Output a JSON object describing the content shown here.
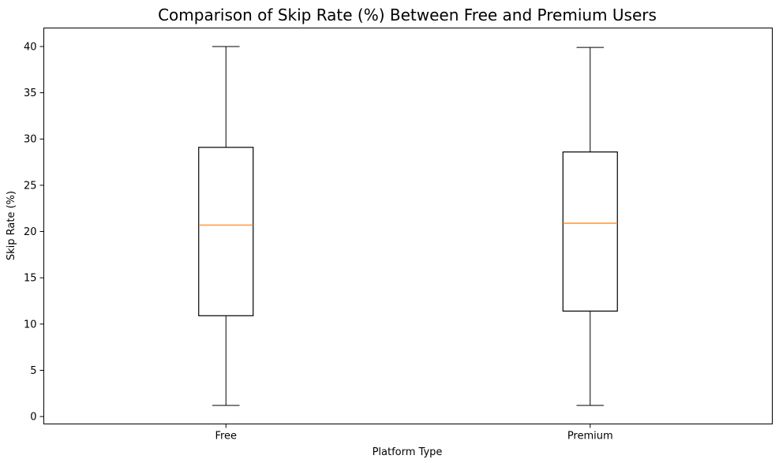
{
  "chart_data": {
    "type": "box",
    "title": "Comparison of Skip Rate (%) Between Free and Premium Users",
    "xlabel": "Platform Type",
    "ylabel": "Skip Rate (%)",
    "ylim": [
      -0.8,
      42
    ],
    "yticks": [
      0,
      5,
      10,
      15,
      20,
      25,
      30,
      35,
      40
    ],
    "grid": false,
    "categories": [
      "Free",
      "Premium"
    ],
    "boxes": [
      {
        "category": "Free",
        "whisker_low": 1.2,
        "q1": 10.9,
        "median": 20.7,
        "q3": 29.1,
        "whisker_high": 40.0
      },
      {
        "category": "Premium",
        "whisker_low": 1.2,
        "q1": 11.4,
        "median": 20.9,
        "q3": 28.6,
        "whisker_high": 39.9
      }
    ],
    "colors": {
      "box": "#000000",
      "median": "#ff7f0e"
    }
  }
}
